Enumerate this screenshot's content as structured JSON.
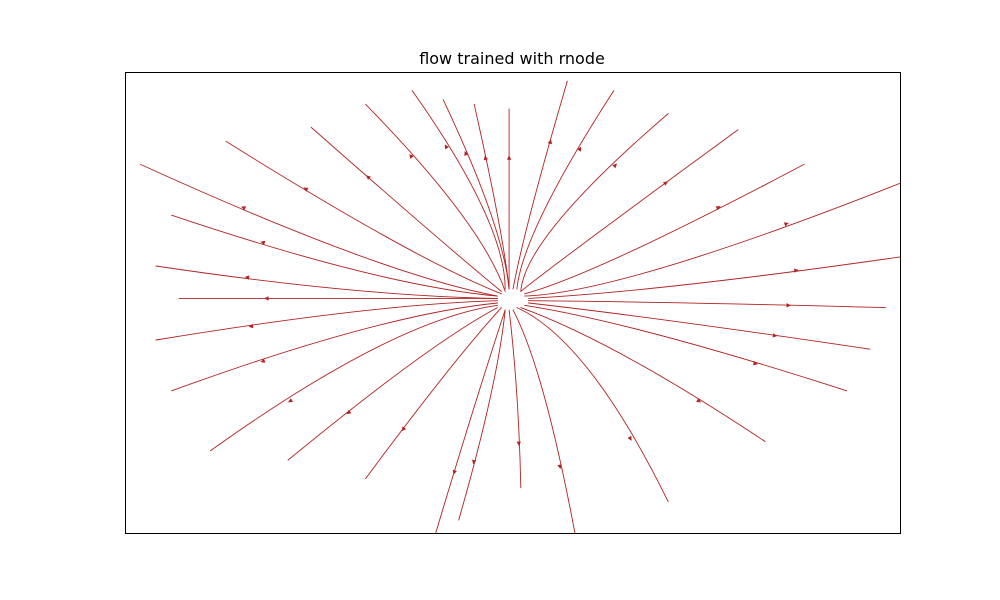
{
  "chart_data": {
    "type": "streamplot",
    "title": "flow trained with rnode",
    "xlabel": "",
    "ylabel": "",
    "xlim": [
      -1,
      1
    ],
    "ylim": [
      -1,
      1
    ],
    "axes_ticks": "none",
    "grid": false,
    "legend": "none",
    "line_color": "#b22222",
    "flow_center": [
      -0.02,
      0.02
    ],
    "flow_pattern": "radial outward divergence from a central source",
    "streamlines": [
      {
        "x": [
          -0.26,
          -0.08,
          -0.02
        ],
        "y": [
          0.92,
          0.42,
          0.06
        ]
      },
      {
        "x": [
          -0.18,
          -0.06,
          -0.01
        ],
        "y": [
          0.88,
          0.4,
          0.06
        ]
      },
      {
        "x": [
          -0.1,
          -0.04,
          -0.01
        ],
        "y": [
          0.86,
          0.38,
          0.06
        ]
      },
      {
        "x": [
          -0.01,
          -0.01,
          -0.01
        ],
        "y": [
          0.84,
          0.4,
          0.06
        ]
      },
      {
        "x": [
          0.14,
          0.05,
          0.0
        ],
        "y": [
          0.96,
          0.42,
          0.06
        ]
      },
      {
        "x": [
          0.26,
          0.08,
          0.01
        ],
        "y": [
          0.92,
          0.4,
          0.06
        ]
      },
      {
        "x": [
          0.4,
          0.12,
          0.02
        ],
        "y": [
          0.82,
          0.36,
          0.05
        ]
      },
      {
        "x": [
          0.58,
          0.2,
          0.02
        ],
        "y": [
          0.75,
          0.28,
          0.05
        ]
      },
      {
        "x": [
          0.75,
          0.3,
          0.03
        ],
        "y": [
          0.6,
          0.22,
          0.04
        ]
      },
      {
        "x": [
          1.0,
          0.4,
          0.03
        ],
        "y": [
          0.52,
          0.16,
          0.03
        ]
      },
      {
        "x": [
          1.0,
          0.45,
          0.04
        ],
        "y": [
          0.2,
          0.08,
          0.02
        ]
      },
      {
        "x": [
          0.96,
          0.45,
          0.04
        ],
        "y": [
          -0.02,
          0.0,
          0.01
        ]
      },
      {
        "x": [
          0.92,
          0.42,
          0.04
        ],
        "y": [
          -0.2,
          -0.08,
          0.0
        ]
      },
      {
        "x": [
          0.86,
          0.38,
          0.03
        ],
        "y": [
          -0.38,
          -0.14,
          -0.01
        ]
      },
      {
        "x": [
          0.65,
          0.3,
          0.02
        ],
        "y": [
          -0.6,
          -0.24,
          -0.02
        ]
      },
      {
        "x": [
          0.4,
          0.2,
          0.01
        ],
        "y": [
          -0.86,
          -0.3,
          -0.02
        ]
      },
      {
        "x": [
          0.16,
          0.08,
          0.0
        ],
        "y": [
          -1.0,
          -0.4,
          -0.03
        ]
      },
      {
        "x": [
          0.02,
          0.01,
          -0.01
        ],
        "y": [
          -0.8,
          -0.4,
          -0.03
        ]
      },
      {
        "x": [
          -0.14,
          -0.06,
          -0.02
        ],
        "y": [
          -0.94,
          -0.42,
          -0.03
        ]
      },
      {
        "x": [
          -0.2,
          -0.1,
          -0.02
        ],
        "y": [
          -1.0,
          -0.45,
          -0.03
        ]
      },
      {
        "x": [
          -0.38,
          -0.18,
          -0.03
        ],
        "y": [
          -0.76,
          -0.32,
          -0.02
        ]
      },
      {
        "x": [
          -0.58,
          -0.26,
          -0.04
        ],
        "y": [
          -0.68,
          -0.26,
          -0.02
        ]
      },
      {
        "x": [
          -0.78,
          -0.36,
          -0.04
        ],
        "y": [
          -0.64,
          -0.2,
          -0.01
        ]
      },
      {
        "x": [
          -0.88,
          -0.4,
          -0.04
        ],
        "y": [
          -0.38,
          -0.12,
          0.0
        ]
      },
      {
        "x": [
          -0.92,
          -0.42,
          -0.04
        ],
        "y": [
          -0.16,
          -0.04,
          0.01
        ]
      },
      {
        "x": [
          -0.86,
          -0.4,
          -0.04
        ],
        "y": [
          0.02,
          0.02,
          0.02
        ]
      },
      {
        "x": [
          -0.92,
          -0.44,
          -0.04
        ],
        "y": [
          0.16,
          0.06,
          0.02
        ]
      },
      {
        "x": [
          -0.88,
          -0.4,
          -0.04
        ],
        "y": [
          0.38,
          0.14,
          0.03
        ]
      },
      {
        "x": [
          -0.96,
          -0.42,
          -0.04
        ],
        "y": [
          0.6,
          0.22,
          0.03
        ]
      },
      {
        "x": [
          -0.74,
          -0.32,
          -0.03
        ],
        "y": [
          0.7,
          0.28,
          0.04
        ]
      },
      {
        "x": [
          -0.52,
          -0.22,
          -0.03
        ],
        "y": [
          0.76,
          0.32,
          0.05
        ]
      },
      {
        "x": [
          -0.38,
          -0.14,
          -0.02
        ],
        "y": [
          0.86,
          0.4,
          0.05
        ]
      }
    ]
  }
}
